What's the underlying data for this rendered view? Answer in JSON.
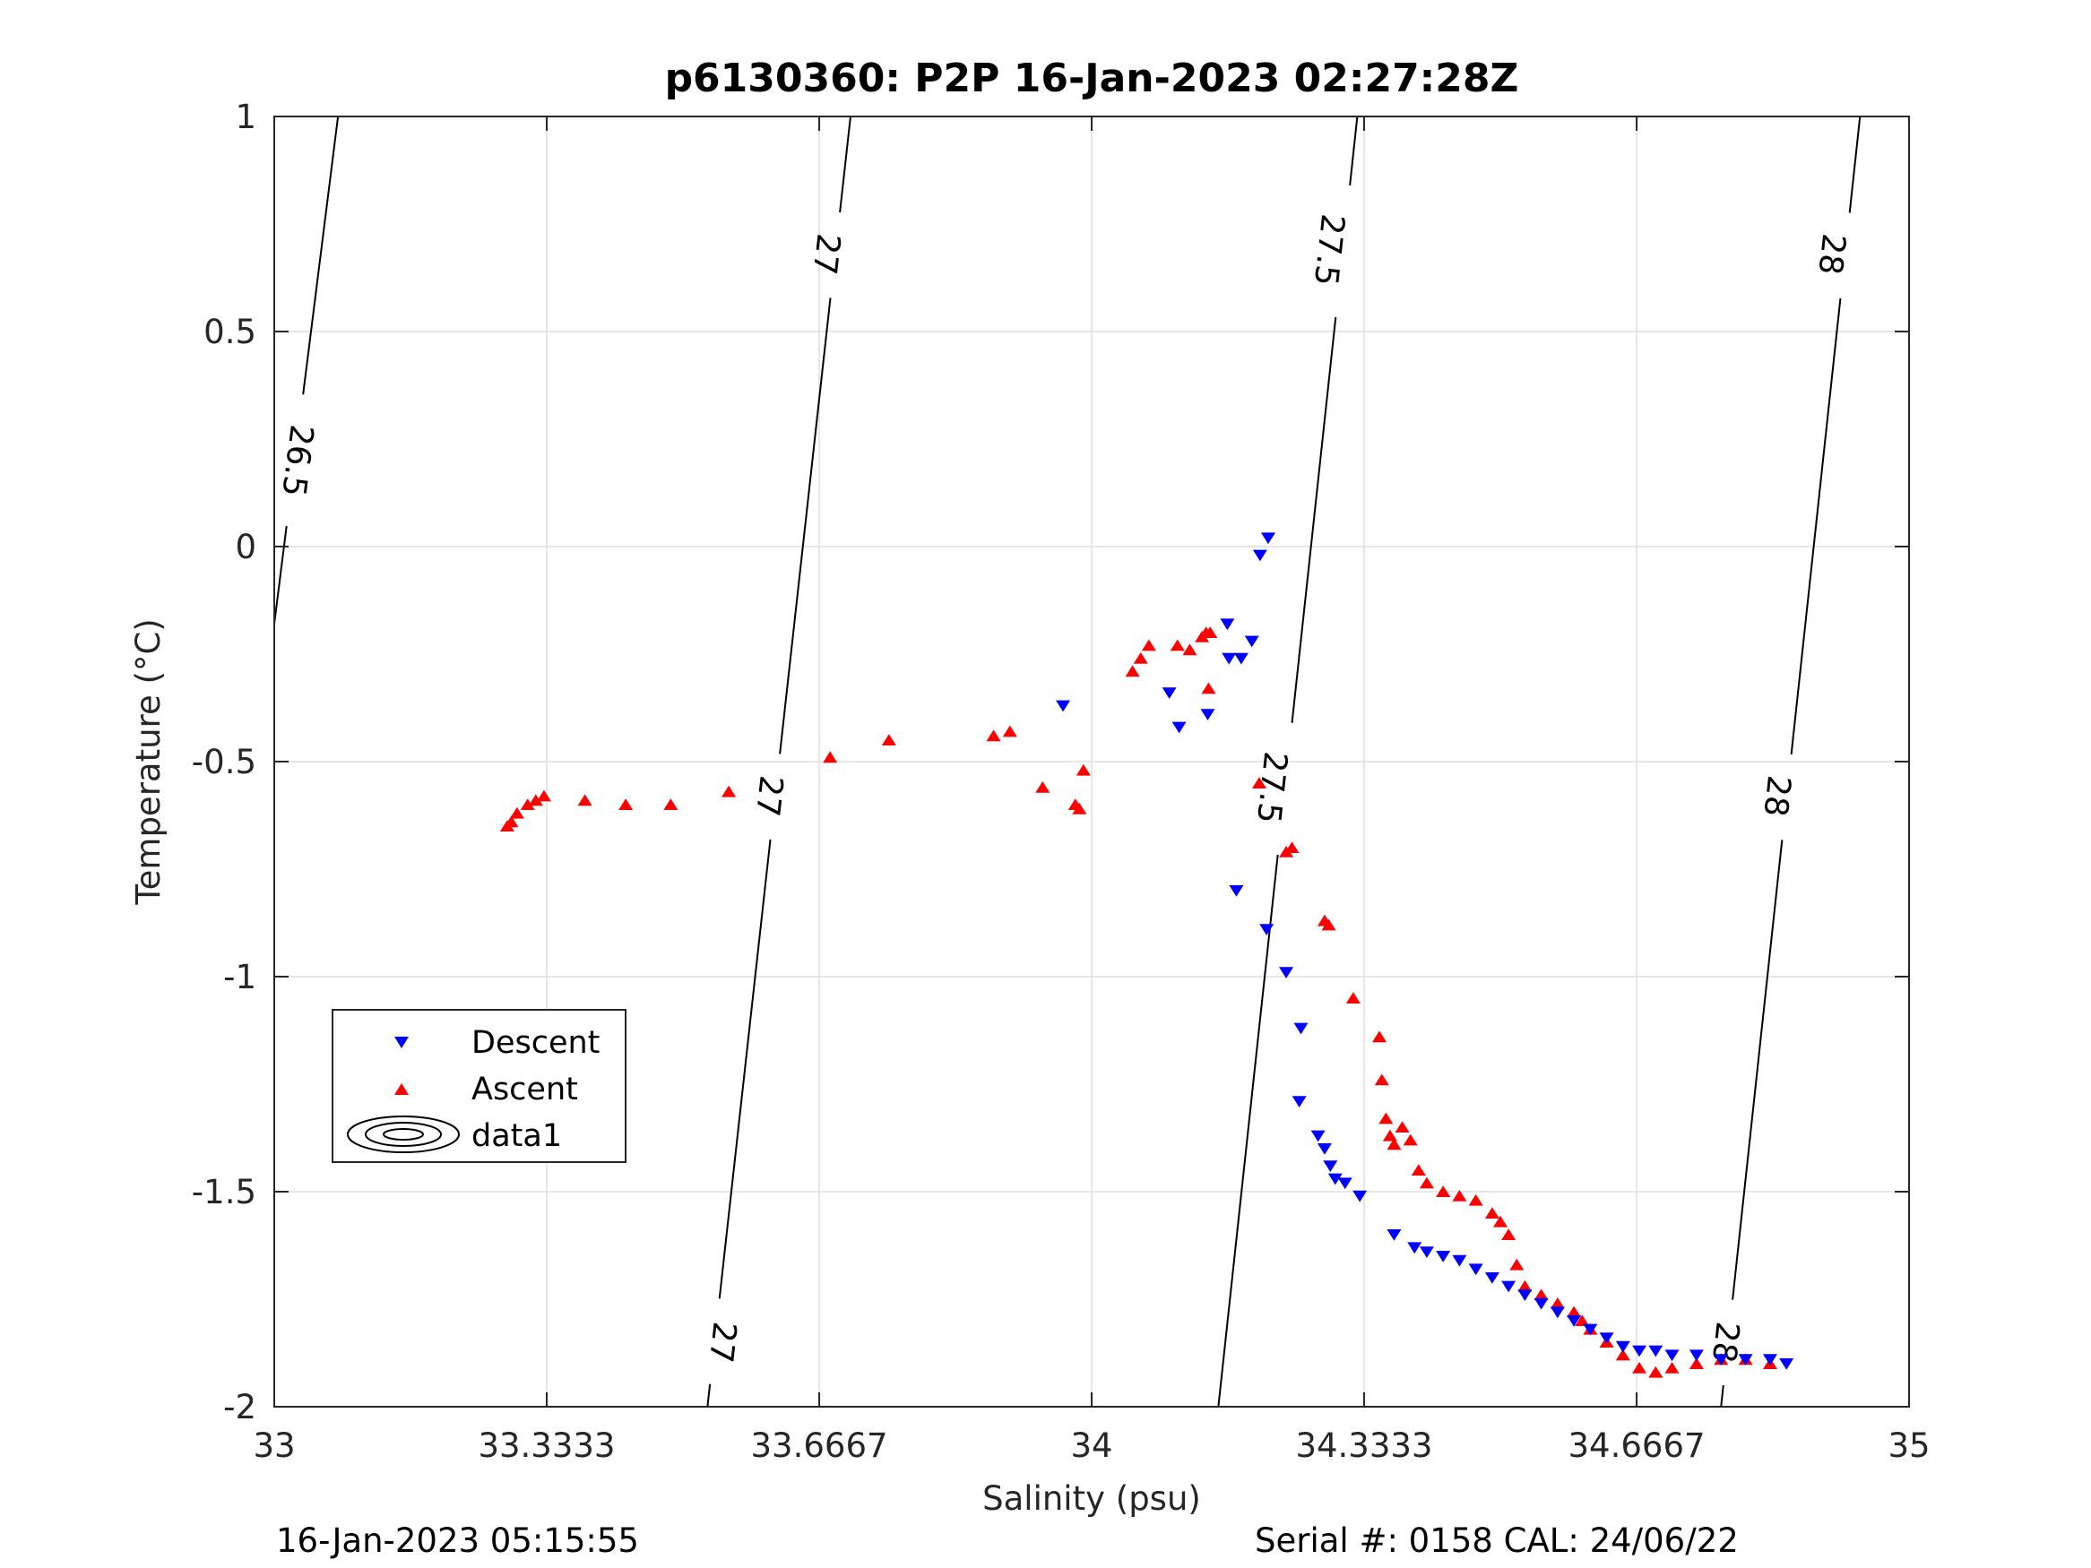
{
  "colors": {
    "descent": "#0000ff",
    "ascent": "#ff0000",
    "grid": "#dfdfdf",
    "axis": "#262626"
  },
  "chart_data": {
    "type": "scatter",
    "title": "p6130360: P2P 16-Jan-2023 02:27:28Z",
    "xlabel": "Salinity (psu)",
    "ylabel": "Temperature (°C)",
    "xlim": [
      33,
      35
    ],
    "ylim": [
      -2,
      1
    ],
    "xticks": [
      33,
      33.3333,
      33.6667,
      34,
      34.3333,
      34.6667,
      35
    ],
    "xtick_labels": [
      "33",
      "33.3333",
      "33.6667",
      "34",
      "34.3333",
      "34.6667",
      "35"
    ],
    "yticks": [
      -2,
      -1.5,
      -1,
      -0.5,
      0,
      0.5,
      1
    ],
    "ytick_labels": [
      "-2",
      "-1.5",
      "-1",
      "-0.5",
      "0",
      "0.5",
      "1"
    ],
    "grid": true,
    "legend_position": "lower-left",
    "series": [
      {
        "name": "Descent",
        "marker": "triangle-down",
        "points": [
          [
            34.216,
            0.02
          ],
          [
            34.206,
            -0.02
          ],
          [
            34.166,
            -0.18
          ],
          [
            34.196,
            -0.22
          ],
          [
            34.168,
            -0.26
          ],
          [
            34.183,
            -0.26
          ],
          [
            34.095,
            -0.34
          ],
          [
            33.965,
            -0.37
          ],
          [
            34.142,
            -0.39
          ],
          [
            34.107,
            -0.42
          ],
          [
            34.177,
            -0.8
          ],
          [
            34.214,
            -0.89
          ],
          [
            34.238,
            -0.99
          ],
          [
            34.256,
            -1.12
          ],
          [
            34.254,
            -1.29
          ],
          [
            34.277,
            -1.37
          ],
          [
            34.285,
            -1.4
          ],
          [
            34.292,
            -1.44
          ],
          [
            34.298,
            -1.47
          ],
          [
            34.31,
            -1.48
          ],
          [
            34.328,
            -1.51
          ],
          [
            34.37,
            -1.6
          ],
          [
            34.395,
            -1.63
          ],
          [
            34.41,
            -1.64
          ],
          [
            34.43,
            -1.65
          ],
          [
            34.45,
            -1.66
          ],
          [
            34.47,
            -1.68
          ],
          [
            34.49,
            -1.7
          ],
          [
            34.51,
            -1.72
          ],
          [
            34.53,
            -1.74
          ],
          [
            34.55,
            -1.76
          ],
          [
            34.57,
            -1.78
          ],
          [
            34.59,
            -1.8
          ],
          [
            34.61,
            -1.82
          ],
          [
            34.63,
            -1.84
          ],
          [
            34.65,
            -1.86
          ],
          [
            34.67,
            -1.87
          ],
          [
            34.69,
            -1.87
          ],
          [
            34.71,
            -1.88
          ],
          [
            34.74,
            -1.88
          ],
          [
            34.77,
            -1.89
          ],
          [
            34.8,
            -1.89
          ],
          [
            34.83,
            -1.89
          ],
          [
            34.85,
            -1.9
          ]
        ]
      },
      {
        "name": "Ascent",
        "marker": "triangle-up",
        "points": [
          [
            33.285,
            -0.65
          ],
          [
            33.29,
            -0.64
          ],
          [
            33.297,
            -0.62
          ],
          [
            33.31,
            -0.6
          ],
          [
            33.32,
            -0.59
          ],
          [
            33.33,
            -0.58
          ],
          [
            33.38,
            -0.59
          ],
          [
            33.43,
            -0.6
          ],
          [
            33.485,
            -0.6
          ],
          [
            33.556,
            -0.57
          ],
          [
            33.68,
            -0.49
          ],
          [
            33.752,
            -0.45
          ],
          [
            33.88,
            -0.44
          ],
          [
            33.9,
            -0.43
          ],
          [
            33.94,
            -0.56
          ],
          [
            33.98,
            -0.6
          ],
          [
            33.985,
            -0.61
          ],
          [
            33.99,
            -0.52
          ],
          [
            34.05,
            -0.29
          ],
          [
            34.06,
            -0.26
          ],
          [
            34.07,
            -0.23
          ],
          [
            34.105,
            -0.23
          ],
          [
            34.12,
            -0.24
          ],
          [
            34.135,
            -0.21
          ],
          [
            34.14,
            -0.2
          ],
          [
            34.145,
            -0.2
          ],
          [
            34.143,
            -0.33
          ],
          [
            34.205,
            -0.55
          ],
          [
            34.238,
            -0.71
          ],
          [
            34.245,
            -0.7
          ],
          [
            34.285,
            -0.87
          ],
          [
            34.29,
            -0.88
          ],
          [
            34.32,
            -1.05
          ],
          [
            34.352,
            -1.14
          ],
          [
            34.355,
            -1.24
          ],
          [
            34.36,
            -1.33
          ],
          [
            34.365,
            -1.37
          ],
          [
            34.37,
            -1.39
          ],
          [
            34.38,
            -1.35
          ],
          [
            34.39,
            -1.38
          ],
          [
            34.4,
            -1.45
          ],
          [
            34.41,
            -1.48
          ],
          [
            34.43,
            -1.5
          ],
          [
            34.45,
            -1.51
          ],
          [
            34.47,
            -1.52
          ],
          [
            34.49,
            -1.55
          ],
          [
            34.5,
            -1.57
          ],
          [
            34.51,
            -1.6
          ],
          [
            34.52,
            -1.67
          ],
          [
            34.53,
            -1.72
          ],
          [
            34.55,
            -1.74
          ],
          [
            34.57,
            -1.76
          ],
          [
            34.59,
            -1.78
          ],
          [
            34.6,
            -1.8
          ],
          [
            34.61,
            -1.82
          ],
          [
            34.63,
            -1.85
          ],
          [
            34.65,
            -1.88
          ],
          [
            34.67,
            -1.91
          ],
          [
            34.69,
            -1.92
          ],
          [
            34.71,
            -1.91
          ],
          [
            34.74,
            -1.9
          ],
          [
            34.77,
            -1.89
          ],
          [
            34.8,
            -1.89
          ],
          [
            34.83,
            -1.9
          ]
        ]
      }
    ],
    "contour_legend_label": "data1",
    "isopycnals": [
      {
        "level": "26.5",
        "points": [
          [
            33.0,
            -0.18
          ],
          [
            33.078,
            1.0
          ]
        ],
        "labels": [
          [
            33.028,
            0.2
          ]
        ]
      },
      {
        "level": "27",
        "points": [
          [
            33.53,
            -2.0
          ],
          [
            33.705,
            1.0
          ]
        ],
        "labels": [
          [
            33.548,
            -1.85
          ],
          [
            33.605,
            -0.58
          ],
          [
            33.675,
            0.68
          ]
        ]
      },
      {
        "level": "27.5",
        "points": [
          [
            34.155,
            -2.0
          ],
          [
            34.325,
            1.0
          ]
        ],
        "labels": [
          [
            34.22,
            -0.56
          ],
          [
            34.29,
            0.69
          ]
        ]
      },
      {
        "level": "28",
        "points": [
          [
            34.77,
            -2.0
          ],
          [
            34.94,
            1.0
          ]
        ],
        "labels": [
          [
            34.775,
            -1.85
          ],
          [
            34.838,
            -0.58
          ],
          [
            34.905,
            0.68
          ]
        ]
      }
    ]
  },
  "footer": {
    "left": "16-Jan-2023 05:15:55",
    "right": "Serial #: 0158  CAL: 24/06/22"
  }
}
